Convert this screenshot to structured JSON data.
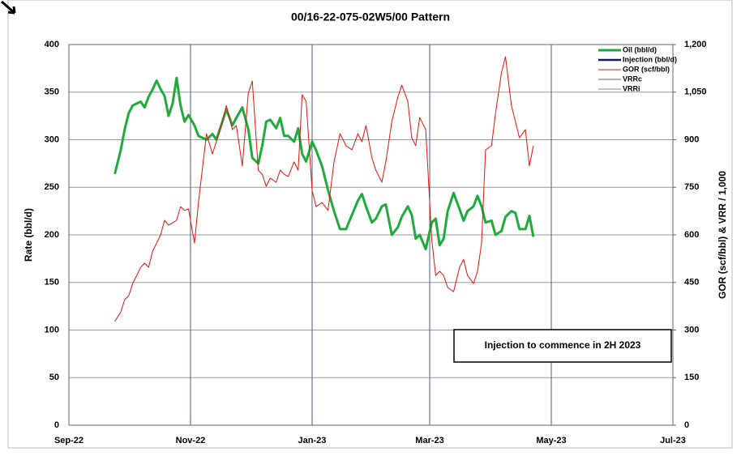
{
  "chart_data": {
    "type": "line",
    "title": "00/16-22-075-02W5/00 Pattern",
    "ylabel": "Rate (bbl/d)",
    "y2label": "GOR (scf/bbl) & VRR / 1,000",
    "annotation": "Injection to commence in 2H 2023",
    "x": [
      23,
      26,
      28,
      30,
      32,
      34,
      36,
      38,
      40,
      42,
      44,
      46,
      48,
      50,
      52,
      54,
      56,
      58,
      60,
      63,
      65,
      69,
      72,
      74,
      77,
      79,
      82,
      84,
      87,
      90,
      92,
      95,
      97,
      99,
      101,
      104,
      106,
      108,
      110,
      113,
      115,
      117,
      119,
      122,
      124,
      127,
      130,
      133,
      136,
      139,
      142,
      145,
      147,
      149,
      152,
      154,
      157,
      159,
      162,
      165,
      167,
      170,
      172,
      174,
      176,
      179,
      182,
      184,
      186,
      188,
      190,
      193,
      196,
      198,
      200,
      203,
      205,
      207,
      209,
      212,
      214,
      217,
      219,
      222,
      224,
      226,
      229,
      231,
      233
    ],
    "series": [
      {
        "name": "Oil (bbl/d)",
        "color": "#1faa3c",
        "axis": "y",
        "values": [
          264,
          289,
          311,
          328,
          336,
          338,
          340,
          334,
          345,
          353,
          362,
          353,
          346,
          325,
          338,
          365,
          336,
          319,
          326,
          315,
          304,
          300,
          306,
          300,
          319,
          332,
          315,
          323,
          334,
          311,
          281,
          275,
          294,
          319,
          321,
          312,
          323,
          304,
          304,
          298,
          312,
          285,
          277,
          298,
          289,
          272,
          247,
          225,
          206,
          206,
          221,
          236,
          243,
          230,
          213,
          217,
          230,
          232,
          200,
          208,
          219,
          230,
          221,
          196,
          200,
          185,
          213,
          217,
          189,
          196,
          225,
          244,
          227,
          215,
          225,
          230,
          241,
          230,
          213,
          215,
          200,
          204,
          219,
          225,
          223,
          206,
          206,
          220,
          198
        ]
      },
      {
        "name": "GOR (scf/bbl)",
        "color": "#e3120b",
        "axis": "y2",
        "values": [
          327,
          357,
          396,
          408,
          447,
          472,
          498,
          511,
          498,
          549,
          574,
          600,
          646,
          631,
          638,
          646,
          689,
          677,
          682,
          574,
          702,
          919,
          855,
          894,
          957,
          1008,
          932,
          945,
          817,
          1047,
          1085,
          804,
          791,
          753,
          779,
          766,
          804,
          791,
          784,
          830,
          804,
          1042,
          1021,
          740,
          689,
          702,
          677,
          830,
          919,
          881,
          868,
          919,
          894,
          945,
          843,
          804,
          766,
          830,
          957,
          1034,
          1072,
          1021,
          906,
          881,
          970,
          932,
          587,
          472,
          485,
          472,
          434,
          421,
          498,
          523,
          472,
          447,
          485,
          574,
          868,
          881,
          983,
          1111,
          1162,
          1008,
          957,
          906,
          932,
          817,
          881
        ]
      }
    ],
    "legend_only": [
      {
        "name": "Injection (bbl/d)",
        "color": "#0b1f66"
      },
      {
        "name": "VRRc",
        "color": "#666666"
      },
      {
        "name": "VRRi",
        "color": "#888888"
      }
    ],
    "xlim": [
      0,
      303
    ],
    "xticks": [
      {
        "value": 0,
        "label": "Sep-22"
      },
      {
        "value": 61,
        "label": "Nov-22"
      },
      {
        "value": 122,
        "label": "Jan-23"
      },
      {
        "value": 181,
        "label": "Mar-23"
      },
      {
        "value": 242,
        "label": "May-23"
      },
      {
        "value": 303,
        "label": "Jul-23"
      }
    ],
    "ylim": [
      0,
      400
    ],
    "yticks": [
      0,
      50,
      100,
      150,
      200,
      250,
      300,
      350,
      400
    ],
    "y2lim": [
      0,
      1200
    ],
    "y2ticks": [
      0,
      150,
      300,
      450,
      600,
      750,
      900,
      {
        "value": 1050,
        "label": "1,050"
      },
      {
        "value": 1200,
        "label": "1,200"
      }
    ],
    "grid": true,
    "legend": "upper right"
  }
}
